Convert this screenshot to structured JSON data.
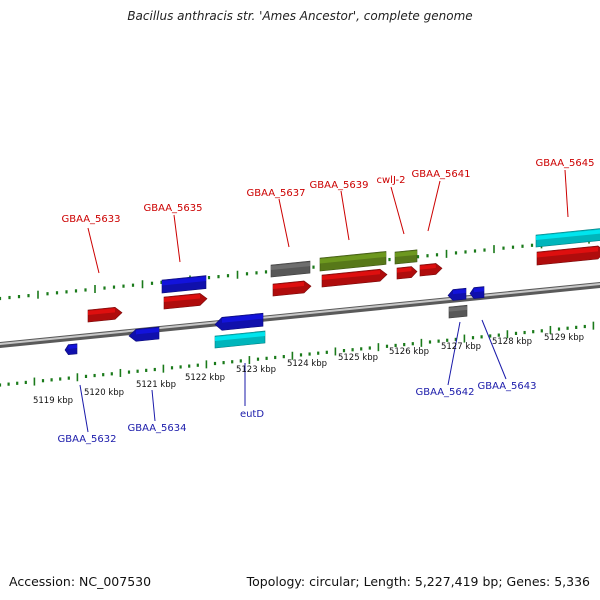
{
  "header": {
    "title": "Bacillus anthracis str. 'Ames Ancestor', complete genome"
  },
  "footer": {
    "accession": "Accession: NC_007530",
    "summary": "Topology: circular; Length: 5,227,419 bp; Genes: 5,336"
  },
  "colors": {
    "gene_forward": "#e01010",
    "gene_reverse": "#1414dd",
    "cds_cyan": "#00e8f0",
    "rna_olive": "#6f9a20",
    "pseudo_gray": "#707070",
    "ticks": "#1a7a1a",
    "backbone": "#777777",
    "label_forward": "#cc0000",
    "label_reverse": "#1a1aaa"
  },
  "map": {
    "kbp_labels": [
      "5119 kbp",
      "5120 kbp",
      "5121 kbp",
      "5122 kbp",
      "5123 kbp",
      "5124 kbp",
      "5125 kbp",
      "5126 kbp",
      "5127 kbp",
      "5128 kbp",
      "5129 kbp"
    ],
    "forward_gene_labels": [
      "GBAA_5633",
      "GBAA_5635",
      "GBAA_5637",
      "GBAA_5639",
      "cwlJ-2",
      "GBAA_5641",
      "GBAA_5645"
    ],
    "reverse_gene_labels": [
      "GBAA_5632",
      "GBAA_5634",
      "eutD",
      "GBAA_5642",
      "GBAA_5643"
    ]
  }
}
